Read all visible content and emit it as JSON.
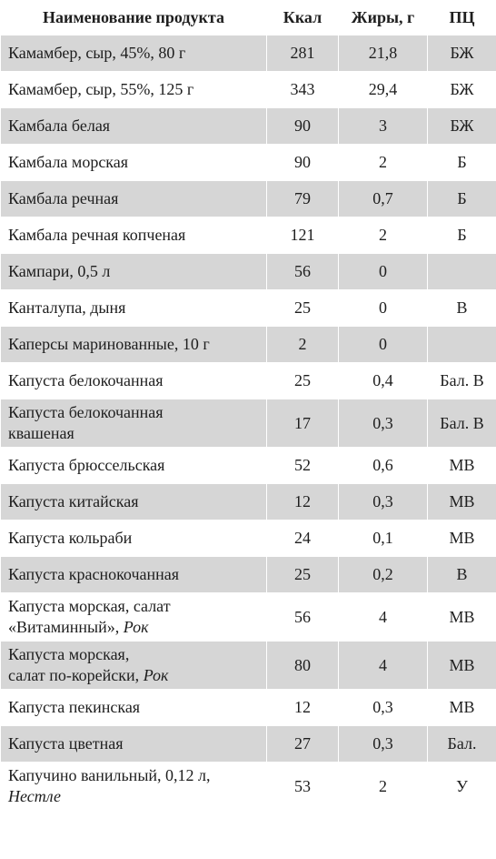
{
  "table": {
    "headers": {
      "name": "Наименование продукта",
      "kcal": "Ккал",
      "fat": "Жиры, г",
      "pc": "ПЦ"
    },
    "rows": [
      {
        "name": "Камамбер, сыр, 45%, 80 г",
        "kcal": "281",
        "fat": "21,8",
        "pc": "БЖ"
      },
      {
        "name": "Камамбер, сыр, 55%, 125 г",
        "kcal": "343",
        "fat": "29,4",
        "pc": "БЖ"
      },
      {
        "name": "Камбала белая",
        "kcal": "90",
        "fat": "3",
        "pc": "БЖ"
      },
      {
        "name": "Камбала морская",
        "kcal": "90",
        "fat": "2",
        "pc": "Б"
      },
      {
        "name": "Камбала речная",
        "kcal": "79",
        "fat": "0,7",
        "pc": "Б"
      },
      {
        "name": "Камбала речная копченая",
        "kcal": "121",
        "fat": "2",
        "pc": "Б"
      },
      {
        "name": "Кампари, 0,5 л",
        "kcal": "56",
        "fat": "0",
        "pc": ""
      },
      {
        "name": "Канталупа, дыня",
        "kcal": "25",
        "fat": "0",
        "pc": "В"
      },
      {
        "name": "Каперсы маринованные, 10 г",
        "kcal": "2",
        "fat": "0",
        "pc": ""
      },
      {
        "name": "Капуста белокочанная",
        "kcal": "25",
        "fat": "0,4",
        "pc": "Бал. В"
      },
      {
        "name_line1": "Капуста белокочанная",
        "name_line2": "квашеная",
        "kcal": "17",
        "fat": "0,3",
        "pc": "Бал. В"
      },
      {
        "name": "Капуста брюссельская",
        "kcal": "52",
        "fat": "0,6",
        "pc": "МВ"
      },
      {
        "name": "Капуста китайская",
        "kcal": "12",
        "fat": "0,3",
        "pc": "МВ"
      },
      {
        "name": "Капуста кольраби",
        "kcal": "24",
        "fat": "0,1",
        "pc": "МВ"
      },
      {
        "name": "Капуста краснокочанная",
        "kcal": "25",
        "fat": "0,2",
        "pc": "В"
      },
      {
        "name_line1": "Капуста морская, салат",
        "name_line2": "«Витаминный», ",
        "name_brand": "Рок",
        "kcal": "56",
        "fat": "4",
        "pc": "МВ"
      },
      {
        "name_line1": "Капуста морская,",
        "name_line2": "салат по-корейски, ",
        "name_brand": "Рок",
        "kcal": "80",
        "fat": "4",
        "pc": "МВ"
      },
      {
        "name": "Капуста пекинская",
        "kcal": "12",
        "fat": "0,3",
        "pc": "МВ"
      },
      {
        "name": "Капуста цветная",
        "kcal": "27",
        "fat": "0,3",
        "pc": "Бал."
      },
      {
        "name_line1": "Капучино ванильный, 0,12 л,",
        "name_brand": "Нестле",
        "kcal": "53",
        "fat": "2",
        "pc": "У"
      }
    ]
  },
  "colors": {
    "stripe": "#d6d6d6",
    "background": "#ffffff",
    "text": "#1e1e1e"
  }
}
